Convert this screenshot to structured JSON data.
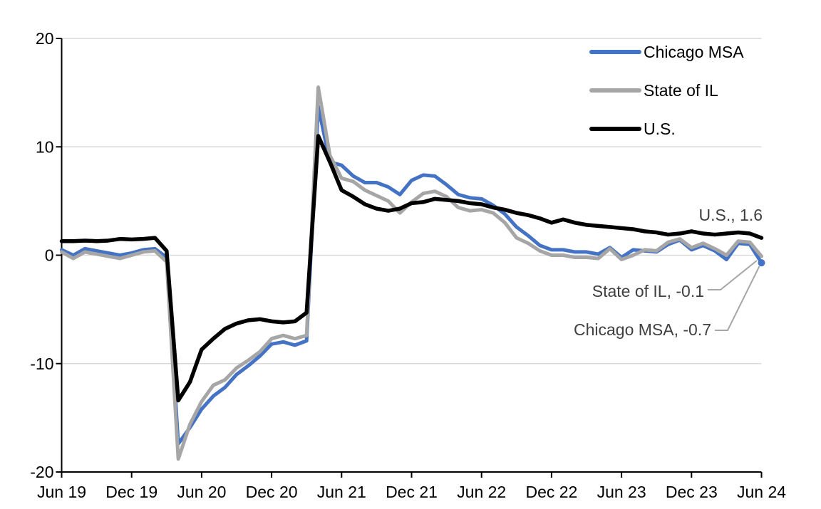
{
  "chart_data": {
    "type": "line",
    "title": "",
    "ylim": [
      -20,
      20
    ],
    "yticks": [
      20,
      10,
      0,
      -10,
      -20
    ],
    "grid": true,
    "x_tick_labels": [
      "Jun 19",
      "Dec 19",
      "Jun 20",
      "Dec 20",
      "Jun 21",
      "Dec 21",
      "Jun 22",
      "Dec 22",
      "Jun 23",
      "Dec 23",
      "Jun 24"
    ],
    "x_tick_every_n_months": 6,
    "x": [
      "Jun 2019",
      "Jul 2019",
      "Aug 2019",
      "Sep 2019",
      "Oct 2019",
      "Nov 2019",
      "Dec 2019",
      "Jan 2020",
      "Feb 2020",
      "Mar 2020",
      "Apr 2020",
      "May 2020",
      "Jun 2020",
      "Jul 2020",
      "Aug 2020",
      "Sep 2020",
      "Oct 2020",
      "Nov 2020",
      "Dec 2020",
      "Jan 2021",
      "Feb 2021",
      "Mar 2021",
      "Apr 2021",
      "May 2021",
      "Jun 2021",
      "Jul 2021",
      "Aug 2021",
      "Sep 2021",
      "Oct 2021",
      "Nov 2021",
      "Dec 2021",
      "Jan 2022",
      "Feb 2022",
      "Mar 2022",
      "Apr 2022",
      "May 2022",
      "Jun 2022",
      "Jul 2022",
      "Aug 2022",
      "Sep 2022",
      "Oct 2022",
      "Nov 2022",
      "Dec 2022",
      "Jan 2023",
      "Feb 2023",
      "Mar 2023",
      "Apr 2023",
      "May 2023",
      "Jun 2023",
      "Jul 2023",
      "Aug 2023",
      "Sep 2023",
      "Oct 2023",
      "Nov 2023",
      "Dec 2023",
      "Jan 2024",
      "Feb 2024",
      "Mar 2024",
      "Apr 2024",
      "May 2024",
      "Jun 2024"
    ],
    "series": [
      {
        "name": "Chicago MSA",
        "color": "#4472C4",
        "end_value_label": "Chicago MSA, -0.7",
        "end_marker": true,
        "values": [
          0.5,
          0.0,
          0.6,
          0.4,
          0.2,
          0.0,
          0.2,
          0.5,
          0.6,
          -0.2,
          -17.4,
          -15.9,
          -14.2,
          -13.0,
          -12.2,
          -11.0,
          -10.2,
          -9.3,
          -8.2,
          -8.0,
          -8.3,
          -7.9,
          13.7,
          8.6,
          8.3,
          7.3,
          6.7,
          6.7,
          6.3,
          5.6,
          6.9,
          7.4,
          7.3,
          6.5,
          5.6,
          5.3,
          5.2,
          4.6,
          3.8,
          2.6,
          1.8,
          0.9,
          0.5,
          0.5,
          0.3,
          0.3,
          0.1,
          0.7,
          -0.2,
          0.5,
          0.4,
          0.3,
          1.0,
          1.4,
          0.5,
          0.9,
          0.4,
          -0.4,
          1.1,
          1.0,
          -0.7
        ]
      },
      {
        "name": "State of IL",
        "color": "#A6A6A6",
        "end_value_label": "State of IL, -0.1",
        "end_marker": false,
        "values": [
          0.3,
          -0.3,
          0.3,
          0.1,
          -0.1,
          -0.3,
          0.0,
          0.3,
          0.4,
          -0.6,
          -18.8,
          -15.6,
          -13.5,
          -12.0,
          -11.5,
          -10.4,
          -9.7,
          -8.9,
          -7.7,
          -7.4,
          -7.7,
          -7.4,
          15.5,
          9.2,
          7.1,
          6.8,
          6.0,
          5.5,
          5.0,
          3.9,
          4.9,
          5.7,
          5.9,
          5.4,
          4.4,
          4.1,
          4.2,
          3.9,
          3.0,
          1.6,
          1.1,
          0.4,
          0.0,
          0.0,
          -0.2,
          -0.2,
          -0.3,
          0.6,
          -0.4,
          0.0,
          0.5,
          0.4,
          1.2,
          1.5,
          0.7,
          1.1,
          0.6,
          0.0,
          1.3,
          1.2,
          -0.1
        ]
      },
      {
        "name": "U.S.",
        "color": "#000000",
        "end_value_label": "U.S., 1.6",
        "end_marker": false,
        "values": [
          1.3,
          1.3,
          1.35,
          1.3,
          1.35,
          1.5,
          1.45,
          1.5,
          1.6,
          0.4,
          -13.4,
          -11.7,
          -8.7,
          -7.7,
          -6.8,
          -6.3,
          -6.0,
          -5.9,
          -6.1,
          -6.2,
          -6.1,
          -5.3,
          11.0,
          8.6,
          6.0,
          5.4,
          4.7,
          4.3,
          4.1,
          4.3,
          4.8,
          4.9,
          5.2,
          5.1,
          5.0,
          4.8,
          4.7,
          4.4,
          4.2,
          3.9,
          3.7,
          3.4,
          3.0,
          3.3,
          3.0,
          2.8,
          2.7,
          2.6,
          2.5,
          2.4,
          2.2,
          2.1,
          1.9,
          2.0,
          2.2,
          2.0,
          1.9,
          2.0,
          2.1,
          2.0,
          1.6
        ]
      }
    ],
    "legend_position": "top-right",
    "annotations": [
      {
        "text": "U.S., 1.6",
        "series": "U.S.",
        "leader_line": false
      },
      {
        "text": "State of IL, -0.1",
        "series": "State of IL",
        "leader_line": true
      },
      {
        "text": "Chicago MSA, -0.7",
        "series": "Chicago MSA",
        "leader_line": true
      }
    ]
  },
  "colors": {
    "chicago_blue": "#4472C4",
    "il_gray": "#A6A6A6",
    "us_black": "#000000",
    "gridline": "#D9D9D9",
    "axis": "#000000",
    "annotation_text": "#404040",
    "leader_line": "#A6A6A6"
  }
}
